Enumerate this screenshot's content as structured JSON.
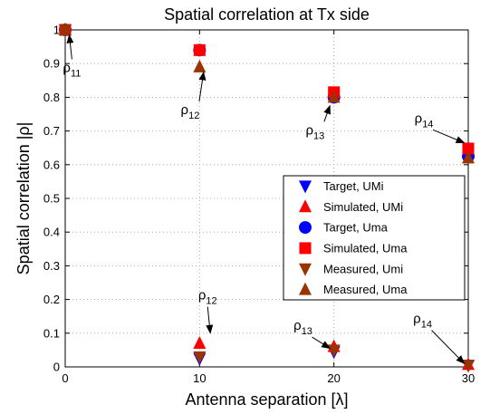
{
  "chart_data": {
    "type": "scatter",
    "title": "Spatial correlation at Tx side",
    "xlabel": "Antenna separation [λ]",
    "ylabel": "Spatial correlation |ρ|",
    "xlim": [
      0,
      30
    ],
    "ylim": [
      0,
      1
    ],
    "xticks": [
      0,
      10,
      20,
      30
    ],
    "yticks": [
      0,
      0.1,
      0.2,
      0.3,
      0.4,
      0.5,
      0.6,
      0.7,
      0.8,
      0.9,
      1
    ],
    "grid": true,
    "legend_position": "lower-right",
    "series": [
      {
        "name": "Target,  UMi",
        "marker": "triangle-down",
        "color": "#0000ff",
        "x": [
          0,
          10,
          20,
          30
        ],
        "y": [
          1.0,
          0.025,
          0.045,
          0.005
        ]
      },
      {
        "name": "Simulated, UMi",
        "marker": "triangle-up",
        "color": "#ff0000",
        "x": [
          0,
          10,
          20,
          30
        ],
        "y": [
          1.0,
          0.07,
          0.06,
          0.007
        ]
      },
      {
        "name": "Target, Uma",
        "marker": "circle",
        "color": "#0000ff",
        "x": [
          0,
          10,
          20,
          30
        ],
        "y": [
          1.0,
          0.94,
          0.8,
          0.625
        ]
      },
      {
        "name": "Simulated, Uma",
        "marker": "square",
        "color": "#ff0000",
        "x": [
          0,
          10,
          20,
          30
        ],
        "y": [
          1.0,
          0.94,
          0.815,
          0.648
        ]
      },
      {
        "name": "Measured, Umi",
        "marker": "triangle-down",
        "color": "#993300",
        "x": [
          0,
          10,
          20,
          30
        ],
        "y": [
          1.0,
          0.03,
          0.05,
          0.004
        ]
      },
      {
        "name": "Measured, Uma",
        "marker": "triangle-up",
        "color": "#993300",
        "x": [
          0,
          10,
          20,
          30
        ],
        "y": [
          1.0,
          0.89,
          0.8,
          0.62
        ]
      }
    ],
    "annotations": [
      {
        "base": "ρ",
        "sub": "11",
        "text_x": 0.5,
        "text_y": 0.875,
        "arrow_to_x": 0.3,
        "arrow_to_y": 0.985
      },
      {
        "base": "ρ",
        "sub": "12",
        "text_x": 9.3,
        "text_y": 0.75,
        "arrow_to_x": 10.3,
        "arrow_to_y": 0.875
      },
      {
        "base": "ρ",
        "sub": "13",
        "text_x": 18.6,
        "text_y": 0.69,
        "arrow_to_x": 19.7,
        "arrow_to_y": 0.775
      },
      {
        "base": "ρ",
        "sub": "14",
        "text_x": 26.7,
        "text_y": 0.725,
        "arrow_to_x": 29.7,
        "arrow_to_y": 0.665
      },
      {
        "base": "ρ",
        "sub": "12",
        "text_x": 10.6,
        "text_y": 0.2,
        "arrow_to_x": 10.8,
        "arrow_to_y": 0.1
      },
      {
        "base": "ρ",
        "sub": "13",
        "text_x": 17.7,
        "text_y": 0.11,
        "arrow_to_x": 19.7,
        "arrow_to_y": 0.055
      },
      {
        "base": "ρ",
        "sub": "14",
        "text_x": 26.6,
        "text_y": 0.13,
        "arrow_to_x": 29.7,
        "arrow_to_y": 0.01
      }
    ]
  }
}
